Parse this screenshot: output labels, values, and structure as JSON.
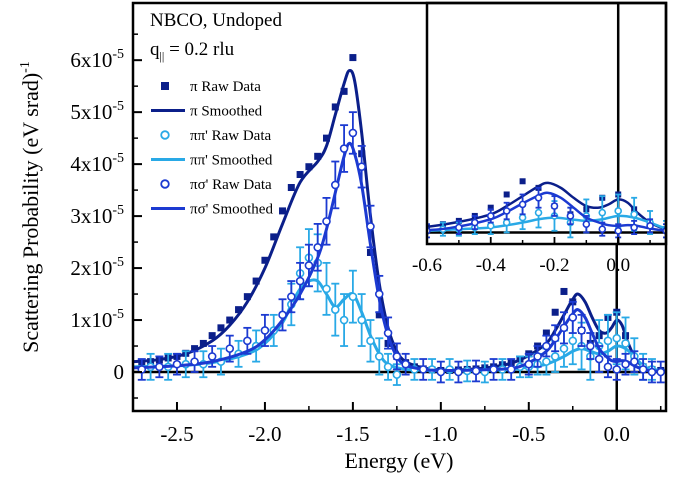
{
  "chart_data": {
    "type": "line",
    "annotations": {
      "sample": "NBCO, Undoped",
      "q_main": "q",
      "q_sub": "||",
      "q_value": " = 0.2 rlu"
    },
    "xlabel": "Energy (eV)",
    "ylabel": "Scattering Probability (eV srad)",
    "ylabel_exp": "-1",
    "xlim": [
      -2.75,
      0.28
    ],
    "ylim": [
      -0.75,
      7.1
    ],
    "y_multiplier_label": "x10",
    "y_multiplier_exp": "-5",
    "x_ticks": [
      -2.5,
      -2.0,
      -1.5,
      -1.0,
      -0.5,
      0.0
    ],
    "x_tick_labels": [
      "-2.5",
      "-2.0",
      "-1.5",
      "-1.0",
      "-0.5",
      "0.0"
    ],
    "y_ticks": [
      0,
      1,
      2,
      3,
      4,
      5,
      6
    ],
    "y_tick_mantissas": [
      "0",
      "1",
      "2",
      "3",
      "4",
      "5",
      "6"
    ],
    "colors": {
      "pi": "#0b1f8a",
      "pipi": "#29a9e6",
      "pisigma": "#1c3ad1"
    },
    "legend": {
      "placement": "top-left",
      "entries": [
        {
          "label": "π  Raw Data",
          "series": "pi",
          "kind": "marker"
        },
        {
          "label": "π  Smoothed",
          "series": "pi",
          "kind": "line"
        },
        {
          "label": "ππ' Raw Data",
          "series": "pipi",
          "kind": "marker"
        },
        {
          "label": "ππ' Smoothed",
          "series": "pipi",
          "kind": "line"
        },
        {
          "label": "πσ' Raw Data",
          "series": "pisigma",
          "kind": "marker"
        },
        {
          "label": "πσ' Smoothed",
          "series": "pisigma",
          "kind": "line"
        }
      ]
    },
    "series": [
      {
        "key": "pi",
        "name": "π",
        "marker": "square-filled",
        "raw_x": [
          -2.7,
          -2.65,
          -2.6,
          -2.55,
          -2.5,
          -2.45,
          -2.4,
          -2.35,
          -2.3,
          -2.25,
          -2.2,
          -2.15,
          -2.1,
          -2.05,
          -2.0,
          -1.95,
          -1.9,
          -1.85,
          -1.8,
          -1.75,
          -1.7,
          -1.65,
          -1.6,
          -1.55,
          -1.5,
          -1.45,
          -1.4,
          -1.35,
          -1.3,
          -1.25,
          -1.2,
          -1.15,
          -1.1,
          -1.05,
          -1.0,
          -0.95,
          -0.9,
          -0.85,
          -0.8,
          -0.75,
          -0.7,
          -0.65,
          -0.6,
          -0.55,
          -0.5,
          -0.45,
          -0.4,
          -0.35,
          -0.3,
          -0.25,
          -0.2,
          -0.15,
          -0.1,
          -0.05,
          0.0,
          0.05,
          0.1,
          0.15,
          0.2,
          0.25
        ],
        "raw_y": [
          0.18,
          0.2,
          0.23,
          0.27,
          0.3,
          0.36,
          0.45,
          0.55,
          0.7,
          0.85,
          1.0,
          1.2,
          1.45,
          1.75,
          2.15,
          2.6,
          3.1,
          3.55,
          3.8,
          3.95,
          4.15,
          4.5,
          5.1,
          5.4,
          6.05,
          4.2,
          2.3,
          1.1,
          0.55,
          0.3,
          0.18,
          0.1,
          0.06,
          0.04,
          0.03,
          0.03,
          0.04,
          0.05,
          0.06,
          0.08,
          0.1,
          0.14,
          0.18,
          0.25,
          0.35,
          0.5,
          0.75,
          1.15,
          1.55,
          1.35,
          0.8,
          0.55,
          0.7,
          1.05,
          1.15,
          0.7,
          0.25,
          0.1,
          0.05,
          0.03
        ],
        "smooth_x": [
          -2.75,
          -2.6,
          -2.45,
          -2.3,
          -2.2,
          -2.1,
          -2.0,
          -1.9,
          -1.8,
          -1.7,
          -1.65,
          -1.6,
          -1.55,
          -1.52,
          -1.49,
          -1.45,
          -1.4,
          -1.35,
          -1.3,
          -1.25,
          -1.2,
          -1.1,
          -1.0,
          -0.9,
          -0.8,
          -0.7,
          -0.6,
          -0.5,
          -0.4,
          -0.35,
          -0.3,
          -0.25,
          -0.22,
          -0.18,
          -0.14,
          -0.1,
          -0.06,
          -0.03,
          0.0,
          0.03,
          0.06,
          0.1,
          0.15,
          0.2,
          0.28
        ],
        "smooth_y": [
          0.2,
          0.24,
          0.35,
          0.6,
          0.9,
          1.35,
          2.0,
          2.85,
          3.65,
          4.05,
          4.35,
          4.95,
          5.55,
          5.8,
          5.6,
          4.6,
          3.0,
          1.7,
          0.85,
          0.4,
          0.2,
          0.08,
          0.04,
          0.04,
          0.06,
          0.1,
          0.17,
          0.32,
          0.55,
          0.8,
          1.1,
          1.4,
          1.5,
          1.35,
          1.05,
          0.8,
          0.75,
          0.85,
          1.0,
          0.9,
          0.6,
          0.3,
          0.1,
          0.05,
          0.03
        ]
      },
      {
        "key": "pipi",
        "name": "ππ'",
        "marker": "circle-open",
        "raw_x": [
          -2.65,
          -2.55,
          -2.45,
          -2.35,
          -2.25,
          -2.15,
          -2.05,
          -1.95,
          -1.85,
          -1.8,
          -1.75,
          -1.7,
          -1.65,
          -1.6,
          -1.55,
          -1.5,
          -1.45,
          -1.4,
          -1.35,
          -1.3,
          -1.25,
          -1.15,
          -1.05,
          -0.95,
          -0.85,
          -0.75,
          -0.65,
          -0.55,
          -0.5,
          -0.45,
          -0.4,
          -0.35,
          -0.3,
          -0.25,
          -0.2,
          -0.15,
          -0.1,
          -0.05,
          0.0,
          0.05,
          0.1,
          0.15,
          0.2
        ],
        "raw_y": [
          0.1,
          0.1,
          0.15,
          0.15,
          0.2,
          0.35,
          0.5,
          0.8,
          1.3,
          1.9,
          2.2,
          2.1,
          1.6,
          1.2,
          1.0,
          1.45,
          1.0,
          0.6,
          0.3,
          0.1,
          -0.05,
          0.05,
          0.05,
          0.05,
          0.02,
          0.0,
          0.05,
          0.1,
          0.1,
          0.15,
          0.2,
          0.3,
          0.45,
          0.6,
          0.5,
          0.3,
          0.5,
          0.6,
          0.65,
          0.55,
          0.3,
          0.1,
          0.05
        ],
        "err": [
          0.25,
          0.25,
          0.25,
          0.25,
          0.25,
          0.25,
          0.3,
          0.3,
          0.4,
          0.5,
          0.55,
          0.55,
          0.5,
          0.5,
          0.5,
          0.5,
          0.5,
          0.4,
          0.35,
          0.25,
          0.2,
          0.2,
          0.2,
          0.2,
          0.2,
          0.2,
          0.2,
          0.2,
          0.2,
          0.2,
          0.25,
          0.3,
          0.35,
          0.45,
          0.45,
          0.45,
          0.5,
          0.5,
          0.5,
          0.5,
          0.35,
          0.25,
          0.2
        ],
        "smooth_x": [
          -2.75,
          -2.5,
          -2.3,
          -2.1,
          -2.0,
          -1.9,
          -1.85,
          -1.8,
          -1.75,
          -1.7,
          -1.65,
          -1.6,
          -1.55,
          -1.5,
          -1.45,
          -1.4,
          -1.35,
          -1.3,
          -1.2,
          -1.0,
          -0.8,
          -0.6,
          -0.5,
          -0.4,
          -0.3,
          -0.25,
          -0.2,
          -0.15,
          -0.1,
          -0.05,
          0.0,
          0.05,
          0.1,
          0.15,
          0.2,
          0.28
        ],
        "smooth_y": [
          0.1,
          0.12,
          0.18,
          0.35,
          0.55,
          0.95,
          1.3,
          1.6,
          1.75,
          1.75,
          1.5,
          1.25,
          1.4,
          1.5,
          1.15,
          0.7,
          0.35,
          0.15,
          0.05,
          0.03,
          0.03,
          0.05,
          0.1,
          0.15,
          0.3,
          0.4,
          0.45,
          0.4,
          0.35,
          0.4,
          0.5,
          0.45,
          0.3,
          0.12,
          0.05,
          0.03
        ]
      },
      {
        "key": "pisigma",
        "name": "πσ'",
        "marker": "circle-open",
        "raw_x": [
          -2.7,
          -2.6,
          -2.5,
          -2.4,
          -2.3,
          -2.2,
          -2.1,
          -2.0,
          -1.9,
          -1.85,
          -1.8,
          -1.75,
          -1.7,
          -1.65,
          -1.6,
          -1.55,
          -1.5,
          -1.45,
          -1.4,
          -1.35,
          -1.3,
          -1.25,
          -1.2,
          -1.1,
          -1.0,
          -0.9,
          -0.8,
          -0.7,
          -0.6,
          -0.5,
          -0.45,
          -0.4,
          -0.35,
          -0.3,
          -0.25,
          -0.2,
          -0.15,
          -0.1,
          -0.05,
          0.0,
          0.05,
          0.1,
          0.15,
          0.2,
          0.25
        ],
        "raw_y": [
          0.05,
          0.1,
          0.15,
          0.2,
          0.3,
          0.45,
          0.6,
          0.8,
          1.1,
          1.45,
          1.75,
          2.05,
          2.4,
          2.9,
          3.6,
          4.3,
          4.6,
          3.95,
          2.8,
          1.5,
          0.75,
          0.3,
          0.15,
          0.05,
          0.0,
          0.0,
          0.02,
          0.05,
          0.05,
          0.15,
          0.3,
          0.5,
          0.65,
          0.85,
          1.05,
          0.8,
          0.5,
          0.25,
          0.1,
          0.05,
          0.15,
          0.2,
          0.05,
          0.0,
          0.0
        ],
        "err": [
          0.2,
          0.2,
          0.2,
          0.2,
          0.2,
          0.25,
          0.25,
          0.3,
          0.3,
          0.3,
          0.35,
          0.4,
          0.45,
          0.45,
          0.45,
          0.45,
          0.4,
          0.4,
          0.4,
          0.35,
          0.3,
          0.25,
          0.2,
          0.2,
          0.2,
          0.2,
          0.2,
          0.2,
          0.2,
          0.2,
          0.2,
          0.2,
          0.25,
          0.3,
          0.3,
          0.3,
          0.25,
          0.25,
          0.2,
          0.2,
          0.2,
          0.2,
          0.2,
          0.2,
          0.2
        ],
        "smooth_x": [
          -2.75,
          -2.5,
          -2.3,
          -2.1,
          -2.0,
          -1.9,
          -1.8,
          -1.7,
          -1.65,
          -1.6,
          -1.55,
          -1.52,
          -1.49,
          -1.45,
          -1.4,
          -1.35,
          -1.3,
          -1.25,
          -1.2,
          -1.1,
          -1.0,
          -0.8,
          -0.6,
          -0.5,
          -0.4,
          -0.35,
          -0.3,
          -0.25,
          -0.22,
          -0.18,
          -0.14,
          -0.1,
          -0.06,
          -0.03,
          0.0,
          0.03,
          0.06,
          0.1,
          0.15,
          0.2,
          0.28
        ],
        "smooth_y": [
          0.08,
          0.12,
          0.2,
          0.4,
          0.62,
          1.0,
          1.5,
          2.2,
          2.75,
          3.45,
          4.15,
          4.4,
          4.2,
          3.6,
          2.45,
          1.4,
          0.7,
          0.3,
          0.13,
          0.05,
          0.03,
          0.04,
          0.07,
          0.18,
          0.4,
          0.62,
          0.88,
          1.12,
          1.2,
          1.05,
          0.75,
          0.45,
          0.3,
          0.22,
          0.2,
          0.22,
          0.2,
          0.12,
          0.05,
          0.02,
          0.02
        ]
      }
    ],
    "inset": {
      "xlim": [
        -0.6,
        0.15
      ],
      "ylim": [
        -0.35,
        6.95
      ],
      "x_ticks": [
        -0.6,
        -0.4,
        -0.2,
        0.0
      ],
      "x_tick_labels": [
        "-0.6",
        "-0.4",
        "-0.2",
        "0.0"
      ]
    }
  }
}
